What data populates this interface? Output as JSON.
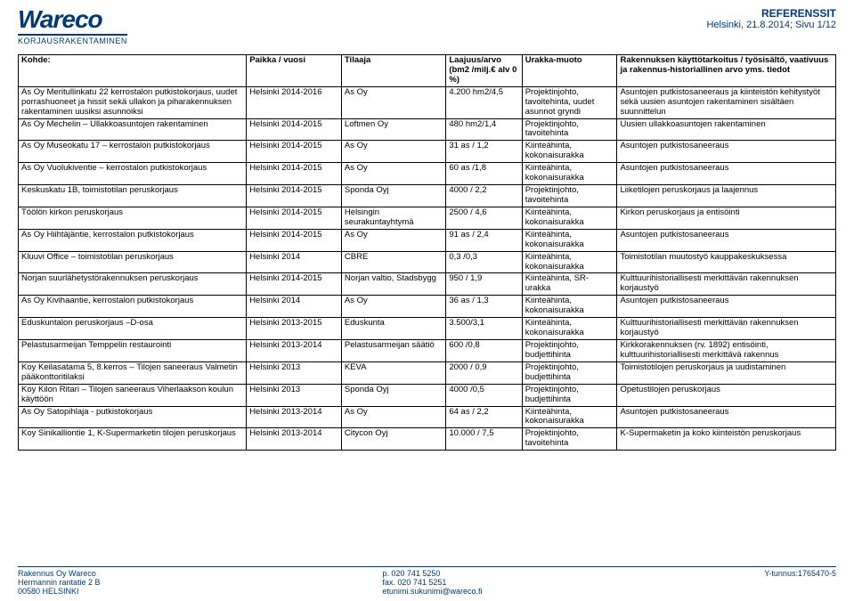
{
  "header": {
    "logo_top": "Wareco",
    "logo_sub": "KORJAUSRAKENTAMINEN",
    "title": "REFERENSSIT",
    "date": "Helsinki, 21.8.2014; Sivu 1/12"
  },
  "columns": {
    "kohde": "Kohde:",
    "paikka": "Paikka / vuosi",
    "tilaaja": "Tilaaja",
    "laajuus": "Laajuus/arvo (bm2 /milj.€ alv 0 %)",
    "urakka": "Urakka-muoto",
    "rakenn": "Rakennuksen käyttötarkoitus / työsisältö, vaativuus ja rakennus-historiallinen arvo yms. tiedot"
  },
  "rows": [
    {
      "kohde": "As Oy Meritullinkatu 22 kerrostalon putkistokorjaus, uudet porrashuoneet ja hissit sekä ullakon ja piharakennuksen rakentaminen uusiksi asunnoiksi",
      "paikka": "Helsinki 2014-2016",
      "tilaaja": "As Oy",
      "laajuus": "4.200 hm2/4,5",
      "urakka": "Projektinjohto, tavoitehinta, uudet asunnot gryndi",
      "rakenn": "Asuntojen putkistosaneeraus ja kiinteistön kehitystyöt sekä uusien asuntojen rakentaminen sisältäen suunnittelun"
    },
    {
      "kohde": "As Oy Mechelin – Ullakkoasuntojen rakentaminen",
      "paikka": "Helsinki 2014-2015",
      "tilaaja": "Loftmen Oy",
      "laajuus": "480 hm2/1,4",
      "urakka": "Projektinjohto, tavoitehinta",
      "rakenn": "Uusien ullakkoasuntojen rakentaminen"
    },
    {
      "kohde": "As Oy Museokatu 17 – kerrostalon putkistokorjaus",
      "paikka": "Helsinki 2014-2015",
      "tilaaja": "As Oy",
      "laajuus": "31 as / 1,2",
      "urakka": "Kiinteähinta, kokonaisurakka",
      "rakenn": "Asuntojen putkistosaneeraus"
    },
    {
      "kohde": "As Oy Vuolukiventie – kerrostalon putkistokorjaus",
      "paikka": "Helsinki 2014-2015",
      "tilaaja": "As Oy",
      "laajuus": "60 as /1,8",
      "urakka": "Kiinteähinta, kokonaisurakka",
      "rakenn": "Asuntojen putkistosaneeraus"
    },
    {
      "kohde": "Keskuskatu 1B, toimistotilan peruskorjaus",
      "paikka": "Helsinki 2014-2015",
      "tilaaja": "Sponda Oyj",
      "laajuus": "4000 / 2,2",
      "urakka": "Projektinjohto, tavoitehinta",
      "rakenn": "Liiketilojen peruskorjaus ja laajennus"
    },
    {
      "kohde": "Töölön kirkon peruskorjaus",
      "paikka": "Helsinki 2014-2015",
      "tilaaja": "Helsingin seurakuntayhtymä",
      "laajuus": "2500 / 4,6",
      "urakka": "Kiinteähinta, kokonaisurakka",
      "rakenn": "Kirkon peruskorjaus ja entisöinti"
    },
    {
      "kohde": "As Oy Hiihtäjäntie, kerrostalon putkistokorjaus",
      "paikka": "Helsinki 2014-2015",
      "tilaaja": "As Oy",
      "laajuus": "91 as / 2,4",
      "urakka": "Kiinteähinta, kokonaisurakka",
      "rakenn": "Asuntojen putkistosaneeraus"
    },
    {
      "kohde": "Kluuvi Office – toimistotilan peruskorjaus",
      "paikka": "Helsinki 2014",
      "tilaaja": "CBRE",
      "laajuus": "0,3 /0,3",
      "urakka": "Kiinteähinta, kokonaisurakka",
      "rakenn": "Toimistotilan muutostyö kauppakeskuksessa"
    },
    {
      "kohde": "Norjan suurlähetystörakennuksen peruskorjaus",
      "paikka": "Helsinki 2014-2015",
      "tilaaja": "Norjan valtio, Stadsbygg",
      "laajuus": "950 / 1,9",
      "urakka": "Kiinteähinta, SR-urakka",
      "rakenn": "Kulttuurihistoriallisesti merkittävän rakennuksen korjaustyö"
    },
    {
      "kohde": "As Oy Kivihaantie, kerrostalon putkistokorjaus",
      "paikka": "Helsinki 2014",
      "tilaaja": "As Oy",
      "laajuus": "36 as / 1,3",
      "urakka": "Kiinteähinta, kokonaisurakka",
      "rakenn": "Asuntojen putkistosaneeraus"
    },
    {
      "kohde": "Eduskuntalon peruskorjaus –D-osa",
      "paikka": "Helsinki 2013-2015",
      "tilaaja": "Eduskunta",
      "laajuus": "3.500/3,1",
      "urakka": "Kiinteähinta, kokonaisurakka",
      "rakenn": "Kulttuurihistoriallisesti merkittävän rakennuksen korjaustyö"
    },
    {
      "kohde": "Pelastusarmeijan Temppelin restaurointi",
      "paikka": "Helsinki 2013-2014",
      "tilaaja": "Pelastusarmeijan säätiö",
      "laajuus": "600 /0,8",
      "urakka": "Projektinjohto, budjettihinta",
      "rakenn": "Kirkkorakennuksen (rv. 1892) entisöinti, kulttuurihistoriallisesti merkittävä rakennus"
    },
    {
      "kohde": "Koy Keilasatama 5, 8.kerros – Tilojen saneeraus Valmetin pääkonttoritilaksi",
      "paikka": "Helsinki 2013",
      "tilaaja": "KEVA",
      "laajuus": "2000 / 0,9",
      "urakka": "Projektinjohto, budjettihinta",
      "rakenn": "Toimistotilojen peruskorjaus ja uudistaminen"
    },
    {
      "kohde": "Koy Kilon Ritari – Tilojen saneeraus Viherlaakson koulun käyttöön",
      "paikka": "Helsinki 2013",
      "tilaaja": "Sponda Oyj",
      "laajuus": "4000 /0,5",
      "urakka": "Projektinjohto, budjettihinta",
      "rakenn": "Opetustilojen peruskorjaus"
    },
    {
      "kohde": "As Oy Satopihlaja - putkistokorjaus",
      "paikka": "Helsinki 2013-2014",
      "tilaaja": "As Oy",
      "laajuus": "64 as / 2,2",
      "urakka": "Kiinteähinta, kokonaisurakka",
      "rakenn": "Asuntojen putkistosaneeraus"
    },
    {
      "kohde": "Koy Sinikalliontie 1, K-Supermarketin tilojen peruskorjaus",
      "paikka": "Helsinki 2013-2014",
      "tilaaja": "Citycon Oyj",
      "laajuus": "10.000 / 7,5",
      "urakka": "Projektinjohto, tavoitehinta",
      "rakenn": "K-Supermaketin ja koko kiinteistön peruskorjaus"
    }
  ],
  "footer": {
    "company": "Rakennus Oy Wareco",
    "addr1": "Hermannin rantatie 2 B",
    "addr2": "00580 HELSINKI",
    "phone": "p.    020 741 5250",
    "fax": "fax. 020 741 5251",
    "email": "etunimi.sukunimi@wareco.fi",
    "ytunnus": "Y-tunnus:1765470-5"
  }
}
